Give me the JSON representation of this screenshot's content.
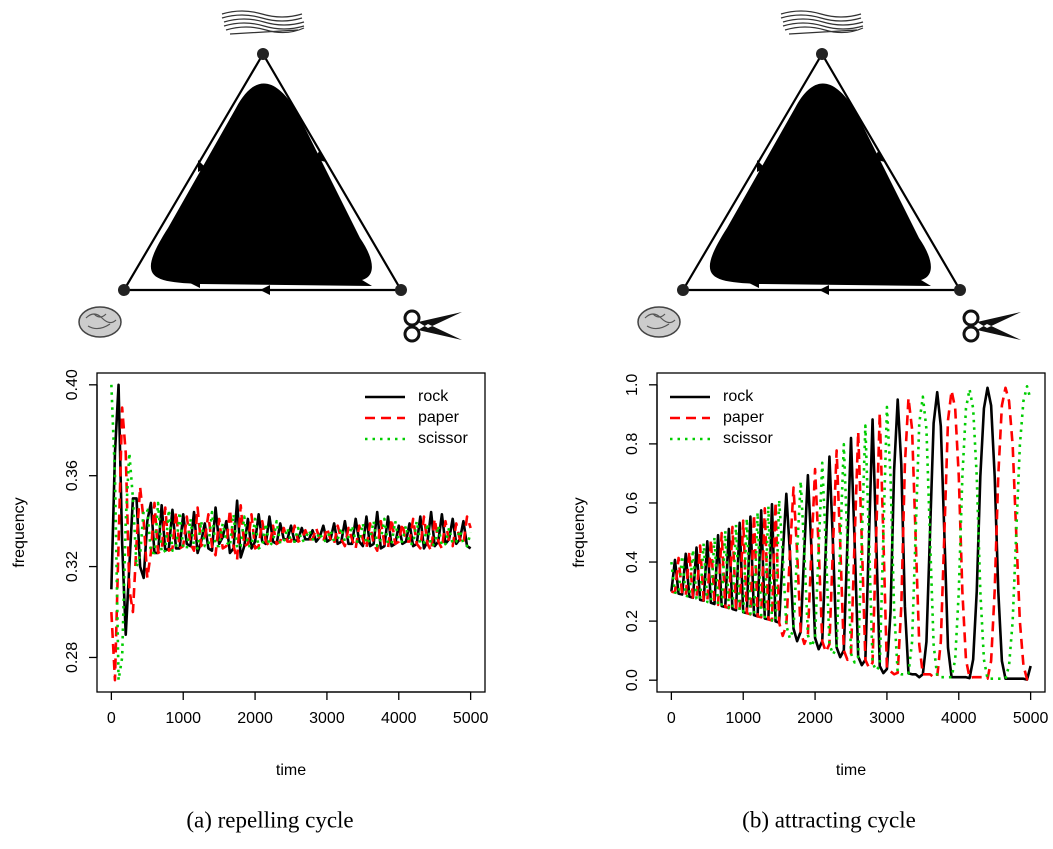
{
  "chart_data": [
    {
      "type": "line",
      "caption": "(a) repelling cycle",
      "xlabel": "time",
      "ylabel": "frequency",
      "xlim": [
        -200,
        5200
      ],
      "ylim": [
        0.2648,
        0.4052
      ],
      "xticks": [
        0,
        1000,
        2000,
        3000,
        4000,
        5000
      ],
      "yticks": [
        0.28,
        0.32,
        0.36,
        {
          "value": 0.4,
          "label": "0.40"
        }
      ],
      "legend": "top-right",
      "x": [
        0,
        50,
        100,
        150,
        200,
        250,
        300,
        350,
        400,
        450,
        500,
        550,
        600,
        650,
        700,
        750,
        800,
        850,
        900,
        950,
        1000,
        1050,
        1100,
        1150,
        1200,
        1250,
        1300,
        1350,
        1400,
        1450,
        1500,
        1550,
        1600,
        1650,
        1700,
        1750,
        1800,
        1850,
        1900,
        1950,
        2000,
        2050,
        2100,
        2150,
        2200,
        2250,
        2300,
        2350,
        2400,
        2450,
        2500,
        2550,
        2600,
        2650,
        2700,
        2750,
        2800,
        2850,
        2900,
        2950,
        3000,
        3050,
        3100,
        3150,
        3200,
        3250,
        3300,
        3350,
        3400,
        3450,
        3500,
        3550,
        3600,
        3650,
        3700,
        3750,
        3800,
        3850,
        3900,
        3950,
        4000,
        4050,
        4100,
        4150,
        4200,
        4250,
        4300,
        4350,
        4400,
        4450,
        4500,
        4550,
        4600,
        4650,
        4700,
        4750,
        4800,
        4850,
        4900,
        4950,
        5000
      ],
      "series": [
        {
          "name": "rock",
          "color": "#000000",
          "linestyle": "solid",
          "values": [
            0.31,
            0.37,
            0.4,
            0.33,
            0.29,
            0.32,
            0.35,
            0.35,
            0.32,
            0.315,
            0.34,
            0.348,
            0.326,
            0.326,
            0.347,
            0.327,
            0.328,
            0.345,
            0.328,
            0.328,
            0.343,
            0.33,
            0.329,
            0.344,
            0.326,
            0.331,
            0.339,
            0.328,
            0.327,
            0.346,
            0.33,
            0.333,
            0.34,
            0.326,
            0.328,
            0.349,
            0.324,
            0.329,
            0.341,
            0.328,
            0.331,
            0.343,
            0.331,
            0.33,
            0.342,
            0.331,
            0.33,
            0.339,
            0.332,
            0.332,
            0.338,
            0.331,
            0.332,
            0.337,
            0.332,
            0.332,
            0.336,
            0.331,
            0.333,
            0.338,
            0.331,
            0.332,
            0.339,
            0.33,
            0.331,
            0.34,
            0.33,
            0.33,
            0.341,
            0.331,
            0.329,
            0.342,
            0.329,
            0.33,
            0.344,
            0.328,
            0.329,
            0.342,
            0.329,
            0.33,
            0.338,
            0.33,
            0.331,
            0.339,
            0.329,
            0.33,
            0.342,
            0.328,
            0.331,
            0.344,
            0.329,
            0.331,
            0.343,
            0.33,
            0.332,
            0.341,
            0.33,
            0.332,
            0.34,
            0.329,
            0.328
          ]
        },
        {
          "name": "paper",
          "color": "#ff0000",
          "linestyle": "dashed",
          "values": [
            0.3,
            0.27,
            0.33,
            0.39,
            0.37,
            0.31,
            0.3,
            0.33,
            0.355,
            0.34,
            0.315,
            0.326,
            0.348,
            0.326,
            0.327,
            0.346,
            0.327,
            0.328,
            0.344,
            0.328,
            0.329,
            0.342,
            0.33,
            0.327,
            0.346,
            0.329,
            0.332,
            0.343,
            0.329,
            0.325,
            0.341,
            0.328,
            0.329,
            0.345,
            0.329,
            0.323,
            0.347,
            0.329,
            0.33,
            0.343,
            0.328,
            0.329,
            0.34,
            0.331,
            0.329,
            0.338,
            0.33,
            0.331,
            0.337,
            0.331,
            0.331,
            0.338,
            0.331,
            0.332,
            0.336,
            0.332,
            0.332,
            0.337,
            0.332,
            0.331,
            0.337,
            0.332,
            0.33,
            0.338,
            0.332,
            0.329,
            0.337,
            0.332,
            0.328,
            0.338,
            0.332,
            0.328,
            0.339,
            0.33,
            0.327,
            0.34,
            0.33,
            0.328,
            0.341,
            0.33,
            0.331,
            0.339,
            0.331,
            0.331,
            0.341,
            0.33,
            0.328,
            0.342,
            0.33,
            0.327,
            0.341,
            0.331,
            0.328,
            0.34,
            0.331,
            0.329,
            0.339,
            0.332,
            0.33,
            0.342,
            0.337
          ]
        },
        {
          "name": "scissor",
          "color": "#00cd00",
          "linestyle": "dotted",
          "values": [
            0.4,
            0.36,
            0.27,
            0.28,
            0.34,
            0.37,
            0.35,
            0.32,
            0.325,
            0.345,
            0.345,
            0.326,
            0.326,
            0.348,
            0.326,
            0.327,
            0.345,
            0.327,
            0.328,
            0.344,
            0.328,
            0.328,
            0.341,
            0.329,
            0.328,
            0.34,
            0.329,
            0.329,
            0.344,
            0.329,
            0.329,
            0.339,
            0.331,
            0.329,
            0.343,
            0.328,
            0.329,
            0.342,
            0.329,
            0.329,
            0.341,
            0.328,
            0.329,
            0.339,
            0.329,
            0.331,
            0.34,
            0.33,
            0.331,
            0.337,
            0.331,
            0.331,
            0.337,
            0.331,
            0.332,
            0.336,
            0.332,
            0.332,
            0.335,
            0.331,
            0.332,
            0.336,
            0.331,
            0.332,
            0.337,
            0.331,
            0.333,
            0.338,
            0.331,
            0.331,
            0.339,
            0.33,
            0.332,
            0.34,
            0.329,
            0.332,
            0.341,
            0.33,
            0.33,
            0.34,
            0.331,
            0.331,
            0.338,
            0.33,
            0.33,
            0.34,
            0.33,
            0.33,
            0.339,
            0.329,
            0.33,
            0.338,
            0.329,
            0.33,
            0.337,
            0.33,
            0.331,
            0.336,
            0.33,
            0.329,
            0.335
          ]
        }
      ]
    },
    {
      "type": "line",
      "caption": "(b) attracting cycle",
      "xlabel": "time",
      "ylabel": "frequency",
      "xlim": [
        -200,
        5200
      ],
      "ylim": [
        -0.04,
        1.04
      ],
      "xticks": [
        0,
        1000,
        2000,
        3000,
        4000,
        5000
      ],
      "yticks": [
        {
          "value": 0,
          "label": "0.0"
        },
        0.2,
        0.4,
        0.6,
        0.8,
        {
          "value": 1,
          "label": "1.0"
        }
      ],
      "legend": "top-left",
      "x": [
        0,
        50,
        100,
        150,
        200,
        250,
        300,
        350,
        400,
        450,
        500,
        550,
        600,
        650,
        700,
        750,
        800,
        850,
        900,
        950,
        1000,
        1050,
        1100,
        1150,
        1200,
        1250,
        1300,
        1350,
        1400,
        1450,
        1500,
        1550,
        1600,
        1650,
        1700,
        1750,
        1800,
        1850,
        1900,
        1950,
        2000,
        2050,
        2100,
        2150,
        2200,
        2250,
        2300,
        2350,
        2400,
        2450,
        2500,
        2550,
        2600,
        2650,
        2700,
        2750,
        2800,
        2850,
        2900,
        2950,
        3000,
        3050,
        3100,
        3150,
        3200,
        3250,
        3300,
        3350,
        3400,
        3450,
        3500,
        3550,
        3600,
        3650,
        3700,
        3750,
        3800,
        3850,
        3900,
        3950,
        4000,
        4050,
        4100,
        4150,
        4200,
        4250,
        4300,
        4350,
        4400,
        4450,
        4500,
        4550,
        4600,
        4650,
        4700,
        4750,
        4800,
        4850,
        4900,
        4950,
        5000
      ],
      "series": [
        {
          "name": "rock",
          "color": "#000000",
          "linestyle": "solid",
          "values": [
            0.3,
            0.407,
            0.293,
            0.29,
            0.428,
            0.283,
            0.279,
            0.449,
            0.272,
            0.269,
            0.47,
            0.262,
            0.258,
            0.491,
            0.251,
            0.248,
            0.512,
            0.241,
            0.237,
            0.533,
            0.23,
            0.227,
            0.554,
            0.22,
            0.216,
            0.575,
            0.209,
            0.206,
            0.596,
            0.199,
            0.195,
            0.425,
            0.631,
            0.43,
            0.174,
            0.132,
            0.164,
            0.439,
            0.694,
            0.443,
            0.143,
            0.105,
            0.132,
            0.452,
            0.757,
            0.457,
            0.111,
            0.078,
            0.101,
            0.466,
            0.82,
            0.47,
            0.08,
            0.051,
            0.069,
            0.479,
            0.883,
            0.484,
            0.048,
            0.024,
            0.038,
            0.23,
            0.71,
            0.95,
            0.73,
            0.25,
            0.023,
            0.02,
            0.02,
            0.01,
            0.02,
            0.13,
            0.5,
            0.87,
            0.975,
            0.86,
            0.49,
            0.11,
            0.01,
            0.01,
            0.01,
            0.01,
            0.01,
            0.007,
            0.07,
            0.3,
            0.69,
            0.92,
            0.99,
            0.93,
            0.69,
            0.3,
            0.065,
            0.005,
            0.005,
            0.005,
            0.005,
            0.005,
            0.005,
            0.002,
            0.048
          ]
        },
        {
          "name": "paper",
          "color": "#ff0000",
          "linestyle": "dashed",
          "values": [
            0.3,
            0.297,
            0.414,
            0.29,
            0.286,
            0.435,
            0.279,
            0.276,
            0.456,
            0.269,
            0.265,
            0.477,
            0.258,
            0.255,
            0.498,
            0.248,
            0.244,
            0.519,
            0.237,
            0.234,
            0.54,
            0.227,
            0.223,
            0.561,
            0.216,
            0.213,
            0.582,
            0.206,
            0.202,
            0.603,
            0.195,
            0.15,
            0.185,
            0.43,
            0.652,
            0.434,
            0.164,
            0.123,
            0.153,
            0.443,
            0.715,
            0.448,
            0.132,
            0.096,
            0.122,
            0.457,
            0.778,
            0.461,
            0.101,
            0.069,
            0.09,
            0.47,
            0.841,
            0.475,
            0.069,
            0.042,
            0.059,
            0.484,
            0.904,
            0.488,
            0.038,
            0.03,
            0.02,
            0.025,
            0.25,
            0.73,
            0.955,
            0.85,
            0.48,
            0.12,
            0.02,
            0.02,
            0.02,
            0.01,
            0.012,
            0.13,
            0.5,
            0.88,
            0.98,
            0.92,
            0.69,
            0.3,
            0.07,
            0.008,
            0.01,
            0.01,
            0.01,
            0.01,
            0.005,
            0.065,
            0.305,
            0.695,
            0.93,
            0.99,
            0.945,
            0.795,
            0.495,
            0.2,
            0.05,
            0.003,
            0.002
          ]
        },
        {
          "name": "scissor",
          "color": "#00cd00",
          "linestyle": "dotted",
          "values": [
            0.4,
            0.297,
            0.293,
            0.421,
            0.286,
            0.283,
            0.442,
            0.276,
            0.272,
            0.463,
            0.265,
            0.262,
            0.484,
            0.255,
            0.251,
            0.505,
            0.244,
            0.241,
            0.526,
            0.234,
            0.23,
            0.547,
            0.223,
            0.22,
            0.568,
            0.213,
            0.209,
            0.589,
            0.202,
            0.199,
            0.61,
            0.425,
            0.185,
            0.141,
            0.174,
            0.434,
            0.673,
            0.439,
            0.153,
            0.114,
            0.143,
            0.448,
            0.736,
            0.452,
            0.122,
            0.087,
            0.111,
            0.461,
            0.799,
            0.466,
            0.09,
            0.06,
            0.08,
            0.475,
            0.862,
            0.479,
            0.059,
            0.033,
            0.048,
            0.488,
            0.925,
            0.69,
            0.24,
            0.025,
            0.02,
            0.02,
            0.022,
            0.13,
            0.5,
            0.87,
            0.96,
            0.85,
            0.48,
            0.12,
            0.013,
            0.01,
            0.01,
            0.01,
            0.01,
            0.07,
            0.3,
            0.69,
            0.92,
            0.985,
            0.92,
            0.69,
            0.3,
            0.07,
            0.005,
            0.005,
            0.005,
            0.005,
            0.005,
            0.005,
            0.05,
            0.2,
            0.5,
            0.795,
            0.945,
            0.995,
            0.95
          ]
        }
      ]
    }
  ]
}
